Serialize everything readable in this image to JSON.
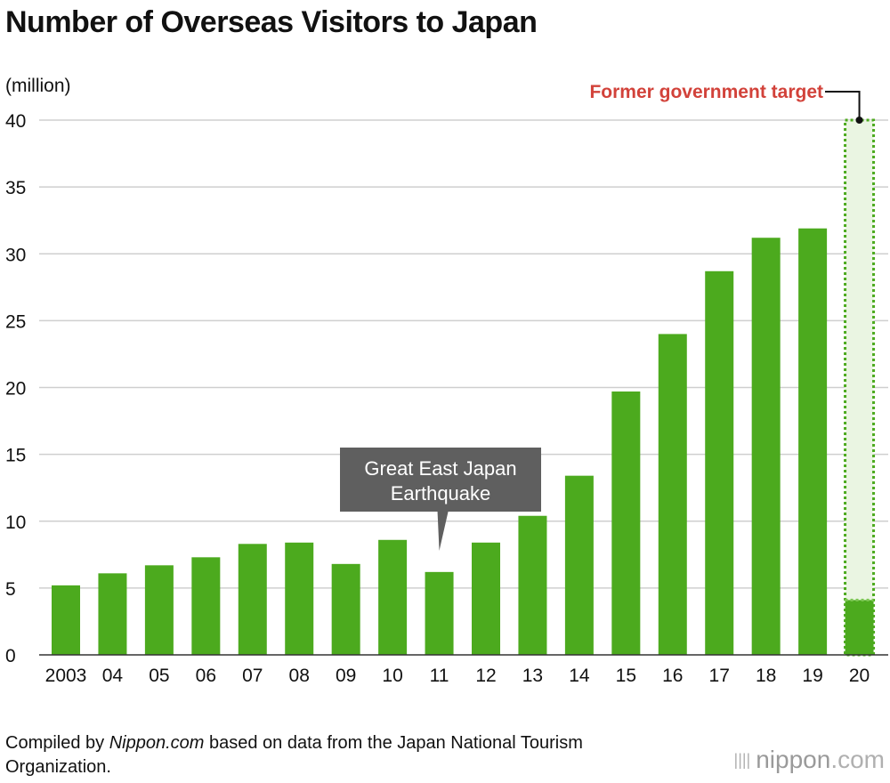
{
  "title": "Number of Overseas Visitors to Japan",
  "colors": {
    "bar": "#4caa1e",
    "target_fill": "#eaf5e2",
    "annotation_bg": "#5f5f5f",
    "target_text": "#d2423a",
    "grid": "#cfcfcf"
  },
  "chart_data": {
    "type": "bar",
    "unit_label": "(million)",
    "categories": [
      "2003",
      "04",
      "05",
      "06",
      "07",
      "08",
      "09",
      "10",
      "11",
      "12",
      "13",
      "14",
      "15",
      "16",
      "17",
      "18",
      "19",
      "20"
    ],
    "values": [
      5.2,
      6.1,
      6.7,
      7.3,
      8.3,
      8.4,
      6.8,
      8.6,
      6.2,
      8.4,
      10.4,
      13.4,
      19.7,
      24.0,
      28.7,
      31.2,
      31.9,
      4.1
    ],
    "ylim": [
      0,
      40
    ],
    "yticks": [
      0,
      5,
      10,
      15,
      20,
      25,
      30,
      35,
      40
    ],
    "target": {
      "year": "20",
      "value": 40,
      "label": "Former government target"
    },
    "annotation": {
      "year": "11",
      "lines": [
        "Great East Japan",
        "Earthquake"
      ]
    }
  },
  "footer": {
    "prefix": "Compiled by ",
    "source_name": "Nippon.com",
    "suffix": " based on data from the Japan National Tourism Organization."
  },
  "logo": {
    "name": "nippon",
    "tld": ".com"
  }
}
